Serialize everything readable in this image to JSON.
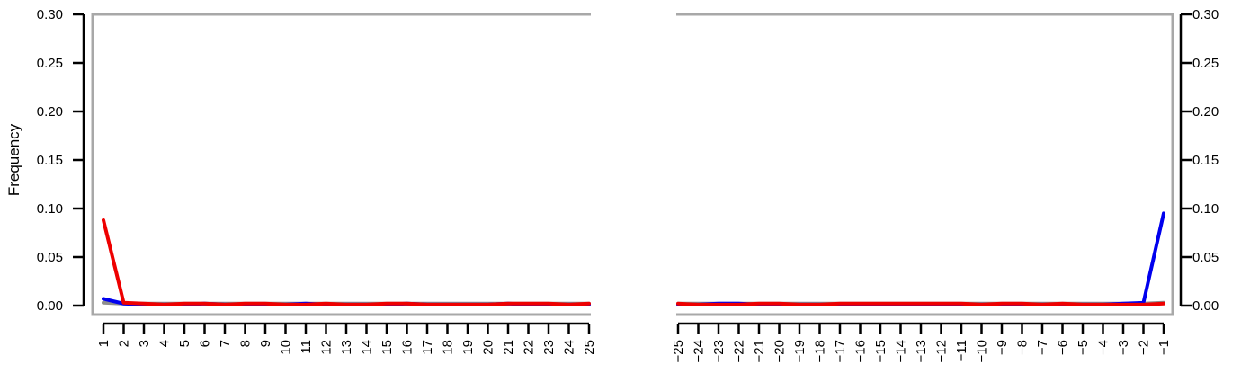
{
  "chart_data": [
    {
      "type": "line",
      "title": "",
      "xlabel": "",
      "ylabel": "Frequency",
      "ylim": [
        0,
        0.3
      ],
      "y_ticks": [
        "0.00",
        "0.05",
        "0.10",
        "0.15",
        "0.20",
        "0.25",
        "0.30"
      ],
      "y_axis_side": "left",
      "grid": false,
      "x": [
        "1",
        "2",
        "3",
        "4",
        "5",
        "6",
        "7",
        "8",
        "9",
        "10",
        "11",
        "12",
        "13",
        "14",
        "15",
        "16",
        "17",
        "18",
        "19",
        "20",
        "21",
        "22",
        "23",
        "24",
        "25"
      ],
      "series": [
        {
          "color": "#8e8e8e",
          "values": [
            0.003,
            0.002,
            0.002,
            0.002,
            0.002,
            0.002,
            0.002,
            0.002,
            0.002,
            0.002,
            0.002,
            0.002,
            0.002,
            0.002,
            0.002,
            0.002,
            0.002,
            0.002,
            0.002,
            0.002,
            0.002,
            0.002,
            0.002,
            0.002,
            0.002
          ]
        },
        {
          "color": "#0000ee",
          "values": [
            0.007,
            0.002,
            0.001,
            0.001,
            0.001,
            0.002,
            0.001,
            0.001,
            0.001,
            0.001,
            0.002,
            0.001,
            0.001,
            0.001,
            0.001,
            0.002,
            0.001,
            0.001,
            0.001,
            0.001,
            0.002,
            0.001,
            0.001,
            0.001,
            0.001
          ]
        },
        {
          "color": "#ee0000",
          "values": [
            0.088,
            0.003,
            0.002,
            0.001,
            0.002,
            0.002,
            0.001,
            0.002,
            0.002,
            0.001,
            0.001,
            0.002,
            0.001,
            0.001,
            0.002,
            0.002,
            0.001,
            0.001,
            0.001,
            0.001,
            0.002,
            0.002,
            0.002,
            0.001,
            0.002
          ]
        }
      ]
    },
    {
      "type": "line",
      "title": "",
      "xlabel": "",
      "ylabel": "",
      "ylim": [
        0,
        0.3
      ],
      "y_ticks": [
        "0.00",
        "0.05",
        "0.10",
        "0.15",
        "0.20",
        "0.25",
        "0.30"
      ],
      "y_axis_side": "right",
      "grid": false,
      "x": [
        "−25",
        "−24",
        "−23",
        "−22",
        "−21",
        "−20",
        "−19",
        "−18",
        "−17",
        "−16",
        "−15",
        "−14",
        "−13",
        "−12",
        "−11",
        "−10",
        "−9",
        "−8",
        "−7",
        "−6",
        "−5",
        "−4",
        "−3",
        "−2",
        "−1"
      ],
      "series": [
        {
          "color": "#8e8e8e",
          "values": [
            0.002,
            0.002,
            0.002,
            0.002,
            0.002,
            0.002,
            0.002,
            0.002,
            0.002,
            0.002,
            0.002,
            0.002,
            0.002,
            0.002,
            0.002,
            0.002,
            0.002,
            0.002,
            0.002,
            0.002,
            0.002,
            0.002,
            0.002,
            0.002,
            0.003
          ]
        },
        {
          "color": "#0000ee",
          "values": [
            0.001,
            0.001,
            0.002,
            0.002,
            0.001,
            0.001,
            0.001,
            0.001,
            0.001,
            0.001,
            0.001,
            0.001,
            0.001,
            0.001,
            0.001,
            0.001,
            0.001,
            0.001,
            0.001,
            0.001,
            0.001,
            0.001,
            0.002,
            0.003,
            0.095
          ]
        },
        {
          "color": "#ee0000",
          "values": [
            0.002,
            0.001,
            0.001,
            0.001,
            0.002,
            0.002,
            0.001,
            0.001,
            0.002,
            0.002,
            0.002,
            0.002,
            0.002,
            0.002,
            0.002,
            0.001,
            0.002,
            0.002,
            0.001,
            0.002,
            0.001,
            0.001,
            0.001,
            0.001,
            0.002
          ]
        }
      ]
    }
  ]
}
